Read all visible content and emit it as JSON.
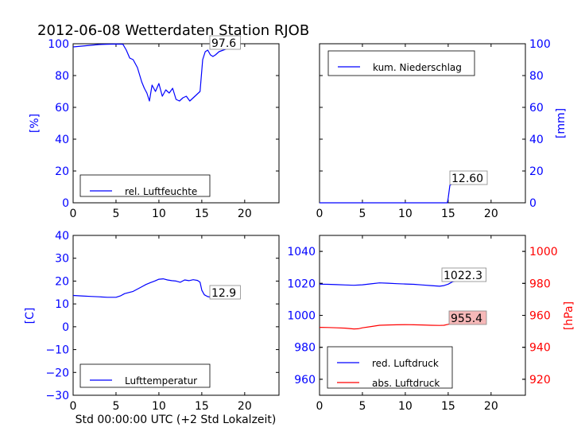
{
  "title": "2012-06-08 Wetterdaten Station RJOB",
  "xlabel": "Std 00:00:00 UTC (+2 Std Lokalzeit)",
  "colors": {
    "blue": "#0000ff",
    "red": "#ff0000",
    "axis": "#000000",
    "last_label_bg": "#ffffff",
    "abs_label_bg": "#f6b8b8"
  },
  "chart_data": [
    {
      "id": "humidity",
      "type": "line",
      "xlim": [
        0,
        24
      ],
      "ylim": [
        0,
        100
      ],
      "xticks": [
        "0",
        "5",
        "10",
        "15",
        "20"
      ],
      "yticks": [
        "0",
        "20",
        "40",
        "60",
        "80",
        "100"
      ],
      "ylabel": "[%]",
      "legend": "rel. Luftfeuchte",
      "legend_loc": "lower-left",
      "last_value_label": "97.6",
      "series": [
        {
          "name": "rel. Luftfeuchte",
          "color": "#0000ff",
          "x": [
            0,
            1,
            2,
            3,
            4,
            5,
            5.8,
            6.2,
            6.6,
            7.0,
            7.5,
            8.0,
            8.3,
            8.6,
            8.9,
            9.2,
            9.6,
            10.0,
            10.4,
            10.8,
            11.2,
            11.6,
            12.0,
            12.4,
            12.8,
            13.2,
            13.6,
            14.0,
            14.4,
            14.8,
            15.1,
            15.4,
            15.7,
            16.0,
            16.3,
            16.6,
            17.0,
            17.5,
            18.0,
            18.5,
            19.0,
            19.3
          ],
          "y": [
            98,
            98.5,
            99,
            99.5,
            99.7,
            99.8,
            99.7,
            96,
            91,
            90,
            85,
            76,
            72,
            69,
            64,
            74,
            70,
            75,
            67,
            71,
            69,
            72,
            65,
            64,
            66,
            67,
            64,
            66,
            68,
            70,
            90,
            95,
            96,
            93,
            92,
            93,
            95,
            96,
            97,
            97.5,
            97.6,
            97.6
          ]
        }
      ]
    },
    {
      "id": "precipitation",
      "type": "line",
      "xlim": [
        0,
        24
      ],
      "ylim": [
        0,
        100
      ],
      "xticks": [
        "0",
        "5",
        "10",
        "15",
        "20"
      ],
      "yticks": [
        "0",
        "20",
        "40",
        "60",
        "80",
        "100"
      ],
      "ylabel": "[mm]",
      "y_axis_side": "right",
      "legend": "kum. Niederschlag",
      "legend_loc": "upper-left",
      "last_value_label": "12.60",
      "series": [
        {
          "name": "kum. Niederschlag",
          "color": "#0000ff",
          "x": [
            0,
            14.9,
            15.0,
            15.2,
            15.5,
            16.0,
            17.0,
            18.0,
            19.3
          ],
          "y": [
            0,
            0,
            3.0,
            11.0,
            12.0,
            12.3,
            12.5,
            12.6,
            12.6
          ]
        }
      ]
    },
    {
      "id": "temperature",
      "type": "line",
      "xlim": [
        0,
        24
      ],
      "ylim": [
        -30,
        40
      ],
      "xticks": [
        "0",
        "5",
        "10",
        "15",
        "20"
      ],
      "yticks": [
        "−30",
        "−20",
        "−10",
        "0",
        "10",
        "20",
        "30",
        "40"
      ],
      "ylabel": "[C]",
      "legend": "Lufttemperatur",
      "legend_loc": "lower-left",
      "last_value_label": "12.9",
      "series": [
        {
          "name": "Lufttemperatur",
          "color": "#0000ff",
          "x": [
            0,
            1,
            2,
            3,
            4,
            5,
            5.5,
            6,
            6.5,
            7,
            7.5,
            8,
            8.5,
            9,
            9.5,
            10,
            10.5,
            11,
            11.5,
            12,
            12.5,
            13,
            13.5,
            14,
            14.5,
            14.8,
            15.0,
            15.3,
            15.7,
            16.0,
            16.5,
            17,
            18,
            19.3
          ],
          "y": [
            13.7,
            13.5,
            13.3,
            13.1,
            12.9,
            12.9,
            13.5,
            14.5,
            15,
            15.5,
            16.5,
            17.5,
            18.5,
            19.3,
            20,
            20.8,
            21,
            20.5,
            20.2,
            20,
            19.5,
            20.5,
            20.2,
            20.6,
            20.3,
            19.5,
            16,
            14,
            13.2,
            13.0,
            12.9,
            12.9,
            12.9,
            12.9
          ]
        }
      ]
    },
    {
      "id": "pressure",
      "type": "line",
      "xlim": [
        0,
        24
      ],
      "ylim_left": [
        950,
        1050
      ],
      "ylim_right": [
        910,
        1010
      ],
      "xticks": [
        "0",
        "5",
        "10",
        "15",
        "20"
      ],
      "yticks_left": [
        "960",
        "980",
        "1000",
        "1020",
        "1040"
      ],
      "yticks_right": [
        "920",
        "940",
        "960",
        "980",
        "1000"
      ],
      "ylabel_right": "[hPa]",
      "legend_loc": "lower-left",
      "series": [
        {
          "name": "red. Luftdruck",
          "color": "#0000ff",
          "axis": "left",
          "last_value_label": "1022.3",
          "x": [
            0,
            1,
            2,
            3,
            4,
            5,
            6,
            7,
            8,
            9,
            10,
            11,
            12,
            13,
            14,
            14.5,
            15,
            15.5,
            16,
            17,
            18,
            19.3
          ],
          "y": [
            1019.5,
            1019.4,
            1019.2,
            1019.0,
            1018.8,
            1019.1,
            1019.7,
            1020.3,
            1020.1,
            1019.8,
            1019.6,
            1019.4,
            1019.0,
            1018.6,
            1018.2,
            1018.6,
            1019.5,
            1021.0,
            1021.6,
            1022.0,
            1022.2,
            1022.3
          ]
        },
        {
          "name": "abs. Luftdruck",
          "color": "#ff0000",
          "axis": "right",
          "last_value_label": "955.4",
          "x": [
            0,
            1,
            2,
            3,
            4,
            4.5,
            5,
            6,
            7,
            8,
            9,
            10,
            11,
            12,
            13,
            14,
            14.5,
            15,
            15.5,
            16,
            17,
            18,
            19.3
          ],
          "y": [
            952.5,
            952.4,
            952.2,
            952.0,
            951.5,
            951.6,
            952.2,
            953.0,
            953.8,
            954.0,
            954.1,
            954.2,
            954.1,
            954.0,
            953.8,
            953.7,
            953.8,
            954.4,
            955.0,
            955.2,
            955.3,
            955.4,
            955.4
          ]
        }
      ]
    }
  ]
}
